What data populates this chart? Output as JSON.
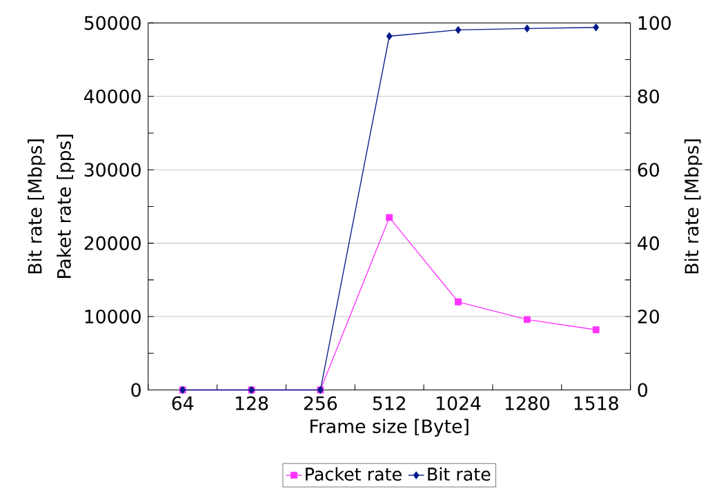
{
  "chart_data": {
    "type": "line",
    "xlabel": "Frame size [Byte]",
    "ylabel": "Paket rate [pps]",
    "y2label": "Bit rate [Mbps]",
    "annotations": [
      "Bit rate [Mbps]"
    ],
    "categories": [
      "64",
      "128",
      "256",
      "512",
      "1024",
      "1280",
      "1518"
    ],
    "series": [
      {
        "name": "Packet rate",
        "color": "#ff33ff",
        "marker": "square",
        "values": [
          0,
          0,
          0,
          23500,
          12000,
          9600,
          8200
        ]
      },
      {
        "name": "Bit rate",
        "color": "#001a8c",
        "marker": "diamond",
        "axis": "y2",
        "values": [
          0,
          0,
          0,
          96.4,
          98.1,
          98.5,
          98.8
        ]
      }
    ],
    "ylim": [
      0,
      50000
    ],
    "yticks": [
      0,
      10000,
      20000,
      30000,
      40000,
      50000
    ],
    "y2lim": [
      0,
      100
    ],
    "y2ticks": [
      0,
      20,
      40,
      60,
      80,
      100
    ],
    "grid": "y",
    "legend": "bottom"
  }
}
